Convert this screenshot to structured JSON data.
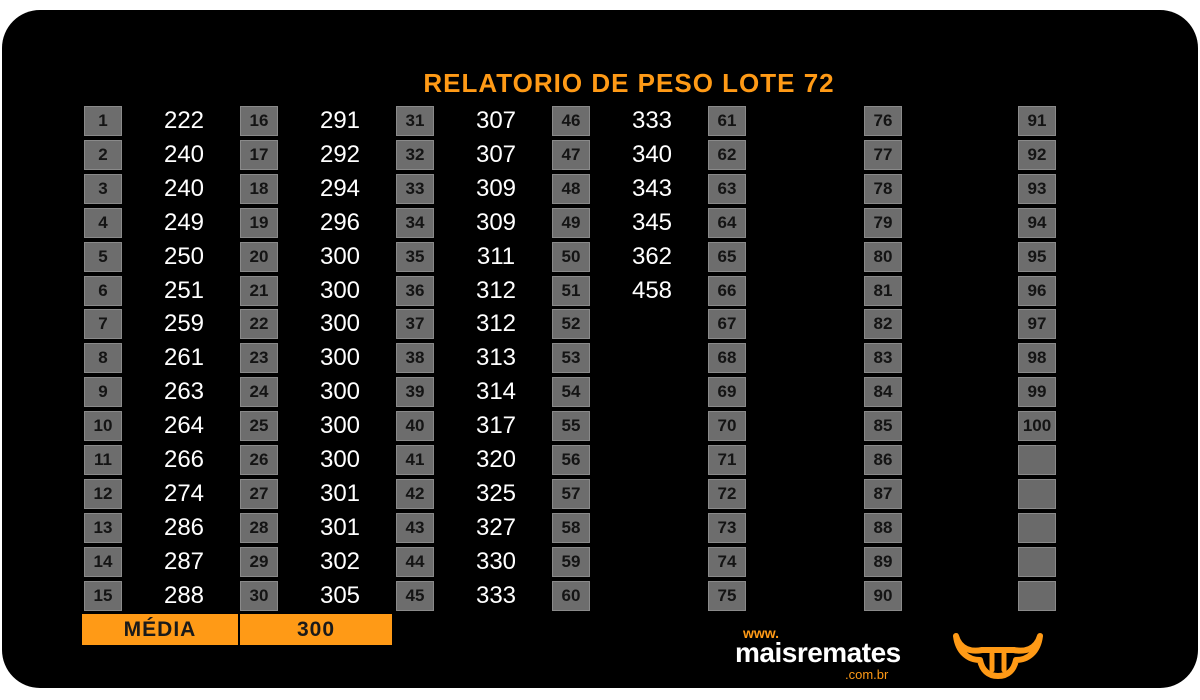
{
  "title": "RELATORIO DE PESO LOTE  72",
  "weights": [
    222,
    240,
    240,
    249,
    250,
    251,
    259,
    261,
    263,
    264,
    266,
    274,
    286,
    287,
    288,
    291,
    292,
    294,
    296,
    300,
    300,
    300,
    300,
    300,
    300,
    300,
    301,
    301,
    302,
    305,
    307,
    307,
    309,
    309,
    311,
    312,
    312,
    313,
    314,
    317,
    320,
    325,
    327,
    330,
    333,
    333,
    340,
    343,
    345,
    362,
    458
  ],
  "lot_numbers_total": 100,
  "average": {
    "label": "MÉDIA",
    "value": "300"
  },
  "logo": {
    "www": "www.",
    "brand": "maisremates",
    "domain": ".com.br"
  },
  "colors": {
    "accent": "#ff9a16",
    "background": "#000000",
    "cell": "#6d6d6d"
  },
  "icons": {
    "bull": "bull-head-icon"
  }
}
